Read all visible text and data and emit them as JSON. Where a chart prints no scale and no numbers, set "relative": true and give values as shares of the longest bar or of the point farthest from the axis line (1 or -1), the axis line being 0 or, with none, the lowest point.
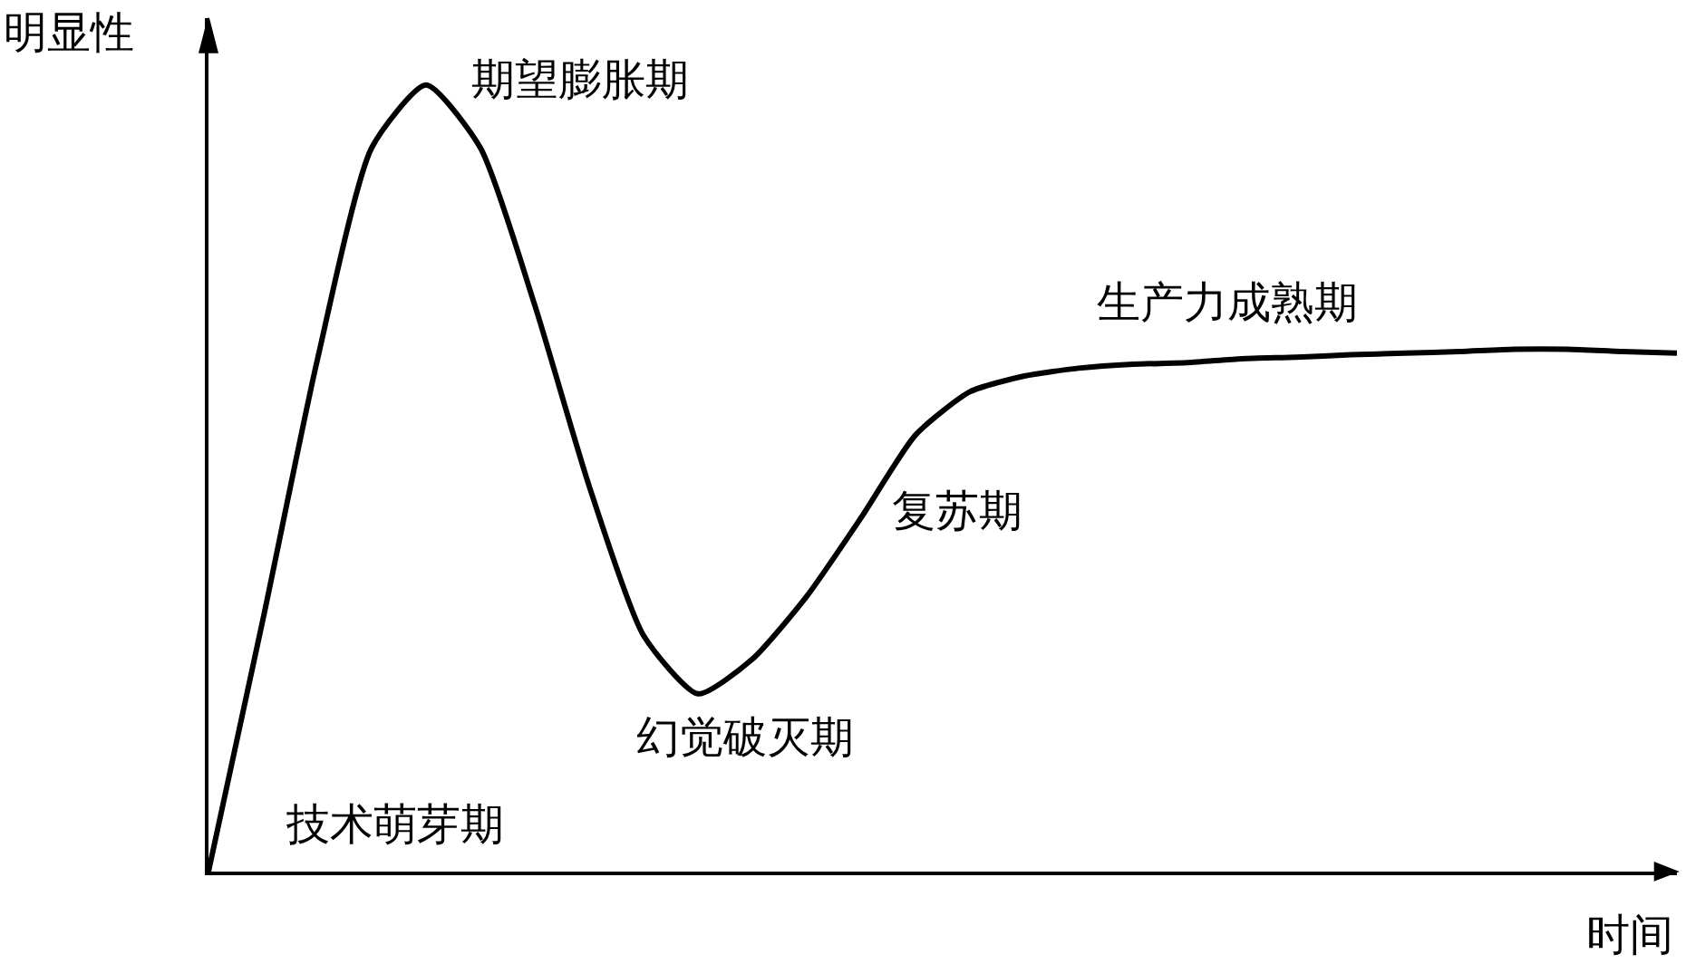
{
  "chart_data": {
    "type": "line",
    "relative": true,
    "xlabel": "时间",
    "ylabel": "明显性",
    "color": "#000000",
    "line_style": "solid",
    "categories": [
      null,
      null,
      null,
      null,
      null,
      null,
      null,
      null,
      null,
      null,
      null,
      null,
      null,
      null,
      null,
      null,
      null,
      null,
      null,
      null,
      null,
      null,
      null,
      null,
      null,
      null,
      null,
      null
    ],
    "values": [
      0,
      0.32,
      0.65,
      0.92,
      1.0,
      0.92,
      0.72,
      0.49,
      0.3,
      0.226,
      0.27,
      0.35,
      0.45,
      0.555,
      0.61,
      0.63,
      0.64,
      0.645,
      0.647,
      0.652,
      0.654,
      0.657,
      0.659,
      0.661,
      0.664,
      0.664,
      0.661,
      0.659
    ],
    "annotations": [
      "期望膨胀期",
      "生产力成熟期",
      "复苏期",
      "幻觉破灭期",
      "技术萌芽期"
    ]
  }
}
